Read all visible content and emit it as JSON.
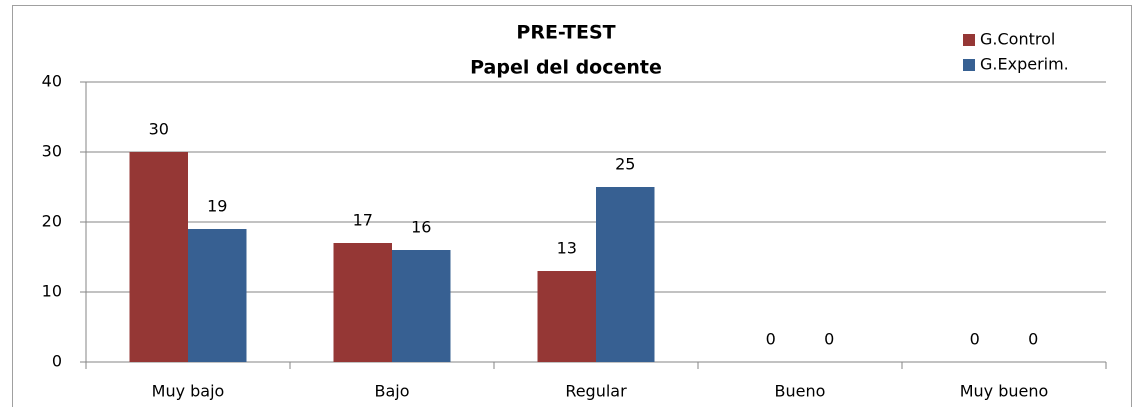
{
  "chart_data": {
    "type": "bar",
    "title": "PRE-TEST",
    "subtitle": "Papel del docente",
    "categories": [
      "Muy bajo",
      "Bajo",
      "Regular",
      "Bueno",
      "Muy bueno"
    ],
    "series": [
      {
        "name": "G.Control",
        "color": "#953735",
        "values": [
          30,
          17,
          13,
          0,
          0
        ]
      },
      {
        "name": "G.Experim.",
        "color": "#376092",
        "values": [
          19,
          16,
          25,
          0,
          0
        ]
      }
    ],
    "ylim": [
      0,
      40
    ],
    "yticks": [
      0,
      10,
      20,
      30,
      40
    ],
    "grid": true,
    "legend": "top-right"
  }
}
